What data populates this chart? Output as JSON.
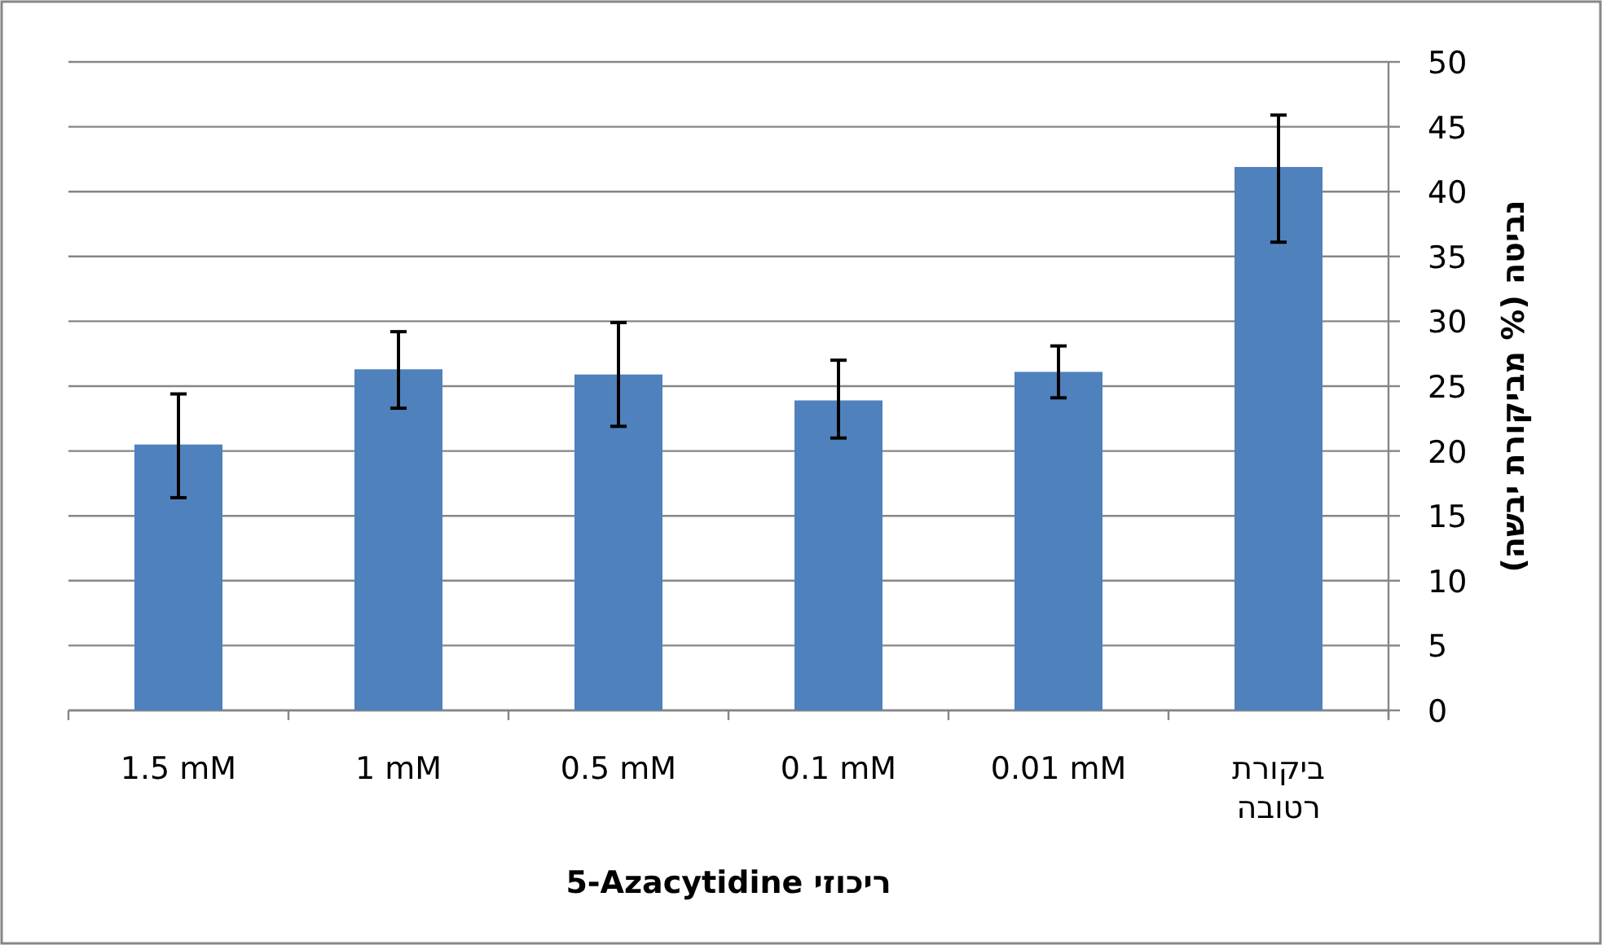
{
  "chart_data": {
    "type": "bar",
    "categories": [
      "1.5 mM",
      "1 mM",
      "0.5 mM",
      "0.1 mM",
      "0.01 mM",
      "ביקורת\nרטובה"
    ],
    "values": [
      20.5,
      26.3,
      25.9,
      23.9,
      26.1,
      41.9
    ],
    "errors": [
      [
        16.4,
        24.4
      ],
      [
        23.3,
        29.2
      ],
      [
        21.9,
        29.9
      ],
      [
        21.0,
        27.0
      ],
      [
        24.1,
        28.1
      ],
      [
        36.1,
        45.9
      ]
    ],
    "color": "#4f81bd",
    "xlabel": "5-Azacytidine ריכוזי",
    "ylabel": "נביטה (% מביקורת יבשה)",
    "ylim": [
      0,
      50
    ],
    "yticks": [
      0,
      5,
      10,
      15,
      20,
      25,
      30,
      35,
      40,
      45,
      50
    ],
    "grid": "y"
  }
}
